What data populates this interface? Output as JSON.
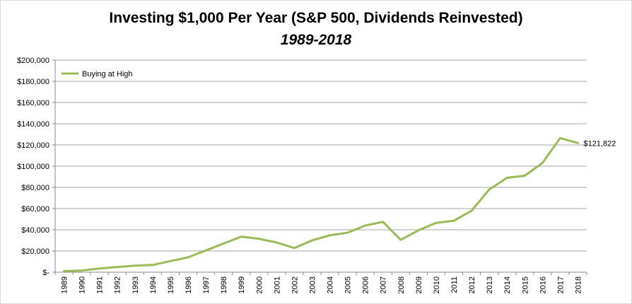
{
  "chart_data": {
    "type": "line",
    "title": "Investing $1,000 Per Year (S&P 500, Dividends Reinvested)",
    "subtitle": "1989-2018",
    "xlabel": "",
    "ylabel": "",
    "ylim": [
      0,
      200000
    ],
    "y_ticks": [
      0,
      20000,
      40000,
      60000,
      80000,
      100000,
      120000,
      140000,
      160000,
      180000,
      200000
    ],
    "y_tick_labels": [
      "$-",
      "$20,000",
      "$40,000",
      "$60,000",
      "$80,000",
      "$100,000",
      "$120,000",
      "$140,000",
      "$160,000",
      "$180,000",
      "$200,000"
    ],
    "grid": true,
    "legend_position": "top-left",
    "categories": [
      "1989",
      "1990",
      "1991",
      "1992",
      "1993",
      "1994",
      "1995",
      "1996",
      "1997",
      "1998",
      "1999",
      "2000",
      "2001",
      "2002",
      "2003",
      "2004",
      "2005",
      "2006",
      "2007",
      "2008",
      "2009",
      "2010",
      "2011",
      "2012",
      "2013",
      "2014",
      "2015",
      "2016",
      "2017",
      "2018"
    ],
    "series": [
      {
        "name": "Buying at High",
        "color": "#9bbb59",
        "values": [
          1000,
          1600,
          3500,
          4800,
          6200,
          6800,
          10500,
          14000,
          20500,
          27000,
          33500,
          31500,
          28000,
          22700,
          30000,
          34800,
          37300,
          44000,
          47500,
          30500,
          39500,
          46500,
          48500,
          58000,
          78000,
          89000,
          91000,
          103000,
          126500,
          121822
        ]
      }
    ],
    "end_label": "$121,822"
  }
}
